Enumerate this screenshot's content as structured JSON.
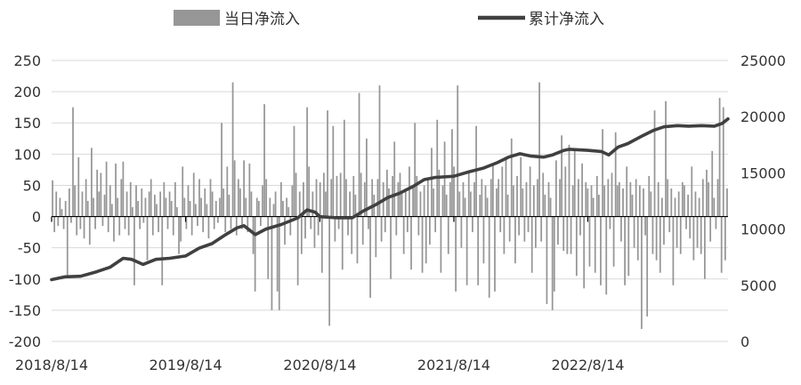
{
  "chart_data": {
    "type": "bar+line",
    "title": "",
    "legend": {
      "position": "top",
      "items": [
        {
          "label": "当日净流入",
          "symbol": "bar"
        },
        {
          "label": "累计净流入",
          "symbol": "line"
        }
      ]
    },
    "x_tick_labels": [
      "2018/8/14",
      "2019/8/14",
      "2020/8/14",
      "2021/8/14",
      "2022/8/14"
    ],
    "x_range": [
      "2018-08-14",
      "2023-08-31"
    ],
    "left_axis": {
      "ylim": [
        -200,
        250
      ],
      "ticks": [
        -200,
        -150,
        -100,
        -50,
        0,
        50,
        100,
        150,
        200,
        250
      ]
    },
    "right_axis": {
      "ylim": [
        0,
        25000
      ],
      "ticks": [
        0,
        5000,
        10000,
        15000,
        20000,
        25000
      ]
    },
    "grid": true,
    "colors": {
      "bar": "#969696",
      "line": "#404040",
      "grid": "#d9d9d9"
    },
    "series": [
      {
        "label": "当日净流入",
        "type": "bar",
        "axis": "left",
        "x_start": "2018-08-14",
        "x_end": "2023-08-31",
        "values": [
          58,
          -25,
          40,
          -15,
          30,
          12,
          -20,
          25,
          -95,
          45,
          -10,
          175,
          50,
          -30,
          95,
          -20,
          40,
          -35,
          60,
          25,
          -45,
          110,
          30,
          -20,
          75,
          40,
          70,
          -15,
          35,
          88,
          -25,
          50,
          20,
          -40,
          85,
          30,
          -30,
          60,
          88,
          -20,
          40,
          -30,
          55,
          15,
          -110,
          50,
          25,
          -20,
          45,
          -10,
          30,
          -70,
          40,
          60,
          -30,
          35,
          20,
          -25,
          40,
          -110,
          55,
          30,
          -20,
          40,
          25,
          -30,
          55,
          15,
          -60,
          -40,
          80,
          30,
          -20,
          50,
          25,
          -30,
          70,
          20,
          -15,
          60,
          30,
          -25,
          45,
          20,
          -35,
          60,
          40,
          -20,
          25,
          -10,
          30,
          150,
          45,
          -25,
          80,
          35,
          -20,
          215,
          90,
          -30,
          60,
          45,
          -20,
          90,
          30,
          -25,
          85,
          40,
          -60,
          -120,
          30,
          25,
          -15,
          50,
          180,
          60,
          -100,
          30,
          -150,
          20,
          40,
          -120,
          -150,
          55,
          25,
          -45,
          30,
          15,
          -30,
          50,
          145,
          70,
          -110,
          40,
          -60,
          55,
          -35,
          175,
          80,
          -20,
          40,
          -50,
          60,
          -30,
          55,
          -90,
          70,
          40,
          170,
          -175,
          60,
          145,
          -40,
          65,
          -20,
          70,
          -85,
          155,
          60,
          -30,
          40,
          -60,
          65,
          35,
          -75,
          198,
          70,
          -45,
          55,
          125,
          -20,
          -130,
          60,
          35,
          -65,
          60,
          210,
          -40,
          55,
          -25,
          75,
          45,
          -100,
          65,
          120,
          -30,
          55,
          70,
          40,
          -60,
          45,
          -25,
          80,
          -85,
          50,
          150,
          65,
          -30,
          40,
          -90,
          50,
          -75,
          60,
          -45,
          110,
          45,
          -25,
          155,
          75,
          -90,
          50,
          120,
          35,
          -60,
          55,
          140,
          80,
          -120,
          210,
          40,
          -50,
          55,
          30,
          -110,
          70,
          40,
          -25,
          55,
          145,
          -110,
          35,
          60,
          -75,
          50,
          30,
          -130,
          60,
          85,
          -120,
          45,
          60,
          -25,
          80,
          -60,
          95,
          35,
          -40,
          125,
          50,
          -75,
          65,
          -30,
          95,
          45,
          -40,
          55,
          -25,
          80,
          -90,
          50,
          -50,
          60,
          215,
          -40,
          70,
          35,
          -140,
          55,
          30,
          -150,
          -120,
          90,
          -45,
          60,
          130,
          -55,
          80,
          -60,
          115,
          -60,
          50,
          105,
          -95,
          60,
          -30,
          85,
          -115,
          55,
          45,
          -80,
          50,
          30,
          -90,
          65,
          35,
          -110,
          140,
          50,
          -125,
          60,
          -20,
          70,
          -80,
          135,
          50,
          55,
          -40,
          45,
          -110,
          80,
          -95,
          55,
          35,
          -50,
          60,
          -70,
          50,
          -180,
          45,
          -30,
          -160,
          65,
          40,
          -60,
          170,
          -70,
          55,
          -90,
          30,
          -45,
          185,
          60,
          -25,
          45,
          -110,
          30,
          -50,
          40,
          -60,
          55,
          50,
          -20,
          35,
          -35,
          80,
          -70,
          40,
          -50,
          30,
          -60,
          60,
          -100,
          75,
          55,
          -40,
          105,
          30,
          -20,
          60,
          190,
          -90,
          175,
          -70,
          45
        ]
      },
      {
        "label": "累计净流入",
        "type": "line",
        "axis": "right",
        "points": [
          [
            "2018-08-14",
            5500
          ],
          [
            "2018-09-20",
            5750
          ],
          [
            "2018-11-01",
            5800
          ],
          [
            "2018-12-15",
            6200
          ],
          [
            "2019-01-20",
            6600
          ],
          [
            "2019-02-25",
            7400
          ],
          [
            "2019-03-20",
            7300
          ],
          [
            "2019-04-20",
            6850
          ],
          [
            "2019-05-25",
            7300
          ],
          [
            "2019-07-01",
            7400
          ],
          [
            "2019-08-14",
            7600
          ],
          [
            "2019-09-20",
            8300
          ],
          [
            "2019-10-25",
            8700
          ],
          [
            "2019-12-01",
            9500
          ],
          [
            "2020-01-01",
            10100
          ],
          [
            "2020-01-20",
            10300
          ],
          [
            "2020-02-20",
            9500
          ],
          [
            "2020-03-20",
            10000
          ],
          [
            "2020-05-01",
            10400
          ],
          [
            "2020-06-15",
            11000
          ],
          [
            "2020-07-10",
            11700
          ],
          [
            "2020-08-01",
            11500
          ],
          [
            "2020-08-14",
            11100
          ],
          [
            "2020-10-01",
            11000
          ],
          [
            "2020-11-10",
            11000
          ],
          [
            "2020-12-10",
            11600
          ],
          [
            "2021-01-15",
            12200
          ],
          [
            "2021-02-15",
            12800
          ],
          [
            "2021-03-20",
            13200
          ],
          [
            "2021-04-25",
            13800
          ],
          [
            "2021-05-25",
            14400
          ],
          [
            "2021-06-25",
            14600
          ],
          [
            "2021-08-14",
            14700
          ],
          [
            "2021-09-25",
            15100
          ],
          [
            "2021-11-01",
            15400
          ],
          [
            "2021-12-10",
            15900
          ],
          [
            "2022-01-10",
            16400
          ],
          [
            "2022-02-10",
            16700
          ],
          [
            "2022-03-10",
            16500
          ],
          [
            "2022-04-15",
            16400
          ],
          [
            "2022-05-10",
            16600
          ],
          [
            "2022-06-10",
            17000
          ],
          [
            "2022-06-25",
            17100
          ],
          [
            "2022-08-14",
            17000
          ],
          [
            "2022-09-20",
            16900
          ],
          [
            "2022-10-10",
            16600
          ],
          [
            "2022-11-05",
            17300
          ],
          [
            "2022-12-01",
            17600
          ],
          [
            "2023-01-10",
            18300
          ],
          [
            "2023-02-10",
            18800
          ],
          [
            "2023-03-10",
            19100
          ],
          [
            "2023-04-15",
            19200
          ],
          [
            "2023-05-15",
            19150
          ],
          [
            "2023-06-20",
            19200
          ],
          [
            "2023-07-25",
            19150
          ],
          [
            "2023-08-15",
            19400
          ],
          [
            "2023-08-31",
            19800
          ]
        ]
      }
    ]
  }
}
